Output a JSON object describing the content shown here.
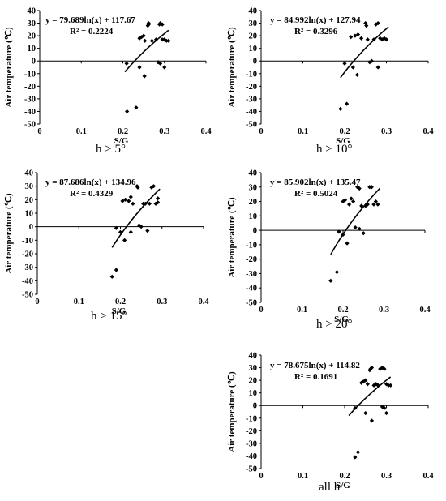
{
  "chart_data": [
    {
      "type": "scatter",
      "caption": "h > 5°",
      "equation": "y = 79.689ln(x) + 117.67",
      "r_squared": "R² = 0.2224",
      "xlabel": "S/G",
      "ylabel": "Air temperature (℃)",
      "xlim": [
        0,
        0.4
      ],
      "ylim": [
        -50,
        40
      ],
      "xticks": [
        "0",
        "0.1",
        "0.2",
        "0.3",
        "0.4"
      ],
      "yticks": [
        "-50",
        "-40",
        "-30",
        "-20",
        "-10",
        "0",
        "10",
        "20",
        "30",
        "40"
      ],
      "trendline": {
        "type": "logarithmic",
        "a": 79.689,
        "b": 117.67,
        "x_range": [
          0.205,
          0.31
        ]
      },
      "points": [
        [
          0.21,
          -40
        ],
        [
          0.209,
          -2
        ],
        [
          0.232,
          -37
        ],
        [
          0.24,
          -5
        ],
        [
          0.24,
          18
        ],
        [
          0.245,
          19
        ],
        [
          0.25,
          20
        ],
        [
          0.253,
          16
        ],
        [
          0.252,
          -12
        ],
        [
          0.26,
          28
        ],
        [
          0.262,
          29
        ],
        [
          0.262,
          30
        ],
        [
          0.27,
          16
        ],
        [
          0.28,
          17
        ],
        [
          0.285,
          -1
        ],
        [
          0.29,
          -2
        ],
        [
          0.288,
          29
        ],
        [
          0.29,
          30
        ],
        [
          0.295,
          29
        ],
        [
          0.295,
          17
        ],
        [
          0.3,
          -5
        ],
        [
          0.3,
          17
        ],
        [
          0.305,
          16
        ],
        [
          0.31,
          16
        ]
      ]
    },
    {
      "type": "scatter",
      "caption": "h > 10°",
      "equation": "y = 84.992ln(x) + 127.94",
      "r_squared": "R² = 0.3296",
      "xlabel": "S/G",
      "ylabel": "Air temperature (℃)",
      "xlim": [
        0,
        0.4
      ],
      "ylim": [
        -50,
        40
      ],
      "xticks": [
        "0",
        "0.1",
        "0.2",
        "0.3",
        "0.4"
      ],
      "yticks": [
        "-50",
        "-40",
        "-30",
        "-20",
        "-10",
        "0",
        "10",
        "20",
        "30",
        "40"
      ],
      "trendline": {
        "type": "logarithmic",
        "a": 84.992,
        "b": 127.94,
        "x_range": [
          0.19,
          0.305
        ]
      },
      "points": [
        [
          0.19,
          -38
        ],
        [
          0.2,
          -2
        ],
        [
          0.205,
          -34
        ],
        [
          0.215,
          19
        ],
        [
          0.22,
          -5
        ],
        [
          0.225,
          20
        ],
        [
          0.23,
          -11
        ],
        [
          0.232,
          21
        ],
        [
          0.24,
          18
        ],
        [
          0.25,
          30
        ],
        [
          0.252,
          28
        ],
        [
          0.255,
          17
        ],
        [
          0.26,
          -1
        ],
        [
          0.265,
          0
        ],
        [
          0.27,
          17
        ],
        [
          0.275,
          29
        ],
        [
          0.28,
          30
        ],
        [
          0.28,
          -5
        ],
        [
          0.285,
          18
        ],
        [
          0.29,
          17
        ],
        [
          0.295,
          18
        ],
        [
          0.3,
          17
        ]
      ]
    },
    {
      "type": "scatter",
      "caption": "h > 15°",
      "equation": "y = 87.686ln(x) + 134.96",
      "r_squared": "R² = 0.4329",
      "xlabel": "S/G",
      "ylabel": "Air temperature (℃)",
      "xlim": [
        0,
        0.4
      ],
      "ylim": [
        -50,
        40
      ],
      "xticks": [
        "0",
        "0.1",
        "0.2",
        "0.3",
        "0.4"
      ],
      "yticks": [
        "-50",
        "-40",
        "-30",
        "-20",
        "-10",
        "0",
        "10",
        "20",
        "30",
        "40"
      ],
      "trendline": {
        "type": "logarithmic",
        "a": 87.686,
        "b": 134.96,
        "x_range": [
          0.18,
          0.295
        ]
      },
      "points": [
        [
          0.18,
          -37
        ],
        [
          0.19,
          -32
        ],
        [
          0.19,
          -1
        ],
        [
          0.2,
          -4
        ],
        [
          0.205,
          19
        ],
        [
          0.21,
          -10
        ],
        [
          0.212,
          20
        ],
        [
          0.22,
          19
        ],
        [
          0.225,
          -4
        ],
        [
          0.225,
          22
        ],
        [
          0.23,
          17
        ],
        [
          0.24,
          30
        ],
        [
          0.242,
          29
        ],
        [
          0.245,
          1
        ],
        [
          0.25,
          0
        ],
        [
          0.255,
          17
        ],
        [
          0.26,
          17
        ],
        [
          0.265,
          -3
        ],
        [
          0.27,
          17
        ],
        [
          0.275,
          29
        ],
        [
          0.28,
          30
        ],
        [
          0.285,
          17
        ],
        [
          0.29,
          18
        ],
        [
          0.29,
          21
        ]
      ]
    },
    {
      "type": "scatter",
      "caption": "h > 20°",
      "equation": "y = 85.902ln(x) + 135.47",
      "r_squared": "R² = 0.5024",
      "xlabel": "S/G",
      "ylabel": "Air temperature (℃)",
      "xlim": [
        0,
        0.4
      ],
      "ylim": [
        -50,
        40
      ],
      "xticks": [
        "0",
        "0.1",
        "0.2",
        "0.3",
        "0.4"
      ],
      "yticks": [
        "-50",
        "-40",
        "-30",
        "-20",
        "-10",
        "0",
        "10",
        "20",
        "30",
        "40"
      ],
      "trendline": {
        "type": "logarithmic",
        "a": 85.902,
        "b": 135.47,
        "x_range": [
          0.17,
          0.29
        ]
      },
      "points": [
        [
          0.17,
          -35
        ],
        [
          0.185,
          -29
        ],
        [
          0.19,
          -1
        ],
        [
          0.2,
          -3
        ],
        [
          0.2,
          20
        ],
        [
          0.205,
          21
        ],
        [
          0.21,
          -9
        ],
        [
          0.215,
          18
        ],
        [
          0.22,
          22
        ],
        [
          0.225,
          20
        ],
        [
          0.23,
          2
        ],
        [
          0.235,
          30
        ],
        [
          0.24,
          29
        ],
        [
          0.24,
          1
        ],
        [
          0.245,
          17
        ],
        [
          0.25,
          -2
        ],
        [
          0.255,
          17
        ],
        [
          0.26,
          18
        ],
        [
          0.265,
          30
        ],
        [
          0.27,
          30
        ],
        [
          0.275,
          18
        ],
        [
          0.28,
          20
        ],
        [
          0.285,
          18
        ]
      ]
    },
    {
      "type": "scatter",
      "caption": "all h",
      "equation": "y = 78.675ln(x) + 114.82",
      "r_squared": "R² = 0.1691",
      "xlabel": "S/G",
      "ylabel": "Air temperature (℃)",
      "xlim": [
        0,
        0.4
      ],
      "ylim": [
        -50,
        40
      ],
      "xticks": [
        "0",
        "0.1",
        "0.2",
        "0.3",
        "0.4"
      ],
      "yticks": [
        "-50",
        "-40",
        "-30",
        "-20",
        "-10",
        "0",
        "10",
        "20",
        "30",
        "40"
      ],
      "trendline": {
        "type": "logarithmic",
        "a": 78.675,
        "b": 114.82,
        "x_range": [
          0.21,
          0.31
        ]
      },
      "points": [
        [
          0.225,
          -2
        ],
        [
          0.225,
          -41
        ],
        [
          0.232,
          -37
        ],
        [
          0.24,
          18
        ],
        [
          0.245,
          19
        ],
        [
          0.25,
          20
        ],
        [
          0.25,
          -6
        ],
        [
          0.255,
          17
        ],
        [
          0.26,
          28
        ],
        [
          0.262,
          29
        ],
        [
          0.265,
          30
        ],
        [
          0.265,
          -12
        ],
        [
          0.27,
          16
        ],
        [
          0.275,
          17
        ],
        [
          0.28,
          16
        ],
        [
          0.285,
          29
        ],
        [
          0.29,
          30
        ],
        [
          0.29,
          -1
        ],
        [
          0.295,
          -2
        ],
        [
          0.295,
          29
        ],
        [
          0.3,
          17
        ],
        [
          0.3,
          -6
        ],
        [
          0.305,
          16
        ],
        [
          0.31,
          16
        ]
      ]
    }
  ]
}
